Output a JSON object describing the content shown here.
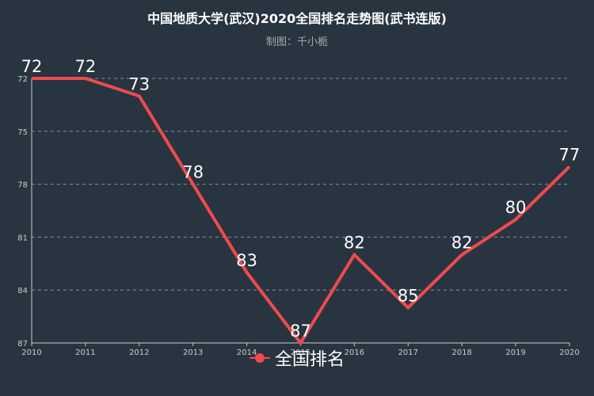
{
  "chart_data": {
    "type": "line",
    "title": "中国地质大学(武汉)2020全国排名走势图(武书连版)",
    "subtitle": "制图：千小栀",
    "x": [
      "2010",
      "2011",
      "2012",
      "2013",
      "2014",
      "2015",
      "2016",
      "2017",
      "2018",
      "2019",
      "2020"
    ],
    "series": [
      {
        "name": "全国排名",
        "values": [
          72,
          72,
          73,
          78,
          83,
          87,
          82,
          85,
          82,
          80,
          77
        ]
      }
    ],
    "y_axis": {
      "inverted": true,
      "ylim": [
        72,
        87
      ],
      "ticks": [
        72,
        75,
        78,
        81,
        84,
        87
      ]
    },
    "grid": true,
    "legend": "bottom-center",
    "colors": {
      "line": "#ef4b4b",
      "background": "#293441",
      "axis": "#cccccc",
      "grid": "#8a919b"
    }
  }
}
